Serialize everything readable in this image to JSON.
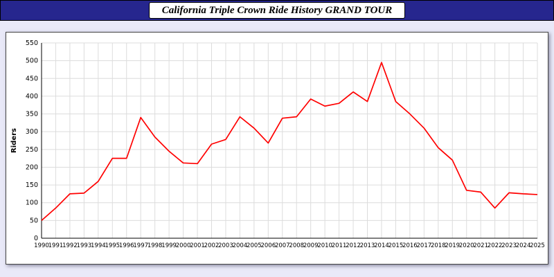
{
  "title": "California Triple Crown Ride History GRAND TOUR",
  "colors": {
    "header_bg": "#26268e",
    "page_bg": "#e9e9f8",
    "line": "#ff0000",
    "grid": "#dcdcdc",
    "axis": "#000000"
  },
  "chart_data": {
    "type": "line",
    "title": "California Triple Crown Ride History GRAND TOUR",
    "xlabel": "",
    "ylabel": "Riders",
    "ylim": [
      0,
      550
    ],
    "ytick_step": 50,
    "grid": true,
    "legend": "none",
    "x": [
      1990,
      1991,
      1992,
      1993,
      1994,
      1995,
      1996,
      1997,
      1998,
      1999,
      2000,
      2001,
      2002,
      2003,
      2004,
      2005,
      2006,
      2007,
      2008,
      2009,
      2010,
      2011,
      2012,
      2013,
      2014,
      2015,
      2016,
      2017,
      2018,
      2019,
      2020,
      2021,
      2022,
      2023,
      2024,
      2025
    ],
    "series": [
      {
        "name": "Riders",
        "color": "#ff0000",
        "values": [
          50,
          85,
          125,
          127,
          160,
          225,
          225,
          340,
          285,
          245,
          212,
          210,
          265,
          278,
          342,
          310,
          268,
          338,
          342,
          392,
          372,
          380,
          412,
          385,
          495,
          385,
          350,
          310,
          255,
          220,
          135,
          130,
          85,
          128,
          125,
          123
        ]
      }
    ]
  }
}
